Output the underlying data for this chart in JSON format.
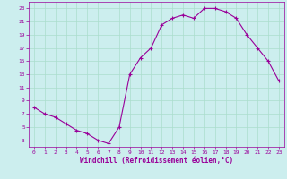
{
  "x": [
    0,
    1,
    2,
    3,
    4,
    5,
    6,
    7,
    8,
    9,
    10,
    11,
    12,
    13,
    14,
    15,
    16,
    17,
    18,
    19,
    20,
    21,
    22,
    23
  ],
  "y": [
    8,
    7,
    6.5,
    5.5,
    4.5,
    4,
    3,
    2.5,
    5,
    13,
    15.5,
    17,
    20.5,
    21.5,
    22,
    21.5,
    23,
    23,
    22.5,
    21.5,
    19,
    17,
    15,
    12
  ],
  "line_color": "#990099",
  "marker": "+",
  "bg_color": "#cceeee",
  "grid_color": "#aaddcc",
  "axis_color": "#990099",
  "xlabel": "Windchill (Refroidissement éolien,°C)",
  "xlabel_color": "#990099",
  "xlim": [
    -0.5,
    23.5
  ],
  "ylim": [
    2,
    24
  ],
  "yticks": [
    3,
    5,
    7,
    9,
    11,
    13,
    15,
    17,
    19,
    21,
    23
  ],
  "xticks": [
    0,
    1,
    2,
    3,
    4,
    5,
    6,
    7,
    8,
    9,
    10,
    11,
    12,
    13,
    14,
    15,
    16,
    17,
    18,
    19,
    20,
    21,
    22,
    23
  ],
  "tick_color": "#990099",
  "figsize": [
    3.2,
    2.0
  ],
  "dpi": 100
}
